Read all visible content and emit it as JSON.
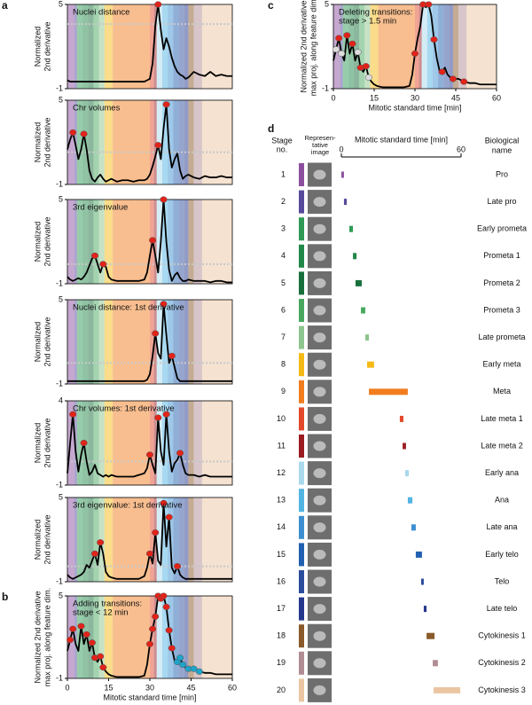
{
  "stage_bands": {
    "colors": [
      "#8c4f9f",
      "#574a9c",
      "#2f9a55",
      "#21884a",
      "#17703c",
      "#48a85f",
      "#8dc58e",
      "#f5b916",
      "#f27d1f",
      "#e3492a",
      "#9b1c20",
      "#a9d9ec",
      "#52b4e3",
      "#3d8fd1",
      "#2060b0",
      "#2b4c9d",
      "#25378d",
      "#8a5a2a",
      "#b08c93",
      "#ebc6a2"
    ],
    "start": [
      0,
      2.5,
      3.5,
      5.5,
      7.5,
      9.5,
      11.5,
      13.5,
      16.5,
      30,
      31.5,
      32.5,
      34.5,
      36.5,
      38.5,
      40.5,
      42.5,
      44,
      46,
      49
    ],
    "end": [
      2.5,
      3.5,
      5.5,
      7.5,
      9.5,
      11.5,
      13.5,
      16.5,
      30,
      31.5,
      32.5,
      34.5,
      36.5,
      38.5,
      40.5,
      42.5,
      44,
      46,
      49,
      60
    ]
  },
  "chart_data": [
    {
      "type": "line",
      "panel": "a",
      "title": [
        "Nuclei distance"
      ],
      "ylabel": [
        "Normalized",
        "2nd derivative"
      ],
      "xlim": [
        0,
        60
      ],
      "ylim": [
        -1,
        5
      ],
      "yticks": [
        -1,
        5
      ],
      "threshold": 3.6,
      "color": "#000000",
      "x": [
        0,
        1,
        2,
        3,
        4,
        5,
        6,
        7,
        8,
        9,
        10,
        11,
        12,
        13,
        14,
        15,
        16,
        18,
        20,
        22,
        24,
        26,
        28,
        29,
        30,
        31,
        32,
        33,
        34,
        35,
        36,
        37,
        38,
        39,
        40,
        41,
        42,
        43,
        44,
        46,
        48,
        50,
        52,
        54,
        56,
        58,
        60
      ],
      "values": [
        -0.4,
        -0.5,
        -0.5,
        -0.5,
        -0.5,
        -0.5,
        -0.5,
        -0.5,
        -0.5,
        -0.5,
        -0.5,
        -0.5,
        -0.5,
        -0.5,
        -0.5,
        -0.5,
        -0.5,
        -0.5,
        -0.5,
        -0.5,
        -0.5,
        -0.5,
        -0.5,
        -0.4,
        -0.3,
        0.8,
        3.5,
        5.0,
        3.2,
        1.8,
        2.6,
        2.0,
        1.2,
        0.6,
        0.2,
        0.0,
        -0.1,
        -0.3,
        -0.2,
        0.2,
        0.0,
        -0.1,
        0.2,
        -0.1,
        0.0,
        -0.1,
        -0.1
      ],
      "markers": [
        {
          "color": "#e2231a",
          "x": [
            33
          ],
          "y": [
            5.0
          ]
        }
      ]
    },
    {
      "type": "line",
      "title": [
        "Chr volumes"
      ],
      "ylabel": [
        "Normalized",
        "2nd derivative"
      ],
      "xlim": [
        0,
        60
      ],
      "ylim": [
        -1,
        5
      ],
      "yticks": [
        -1,
        5
      ],
      "threshold": 1.3,
      "color": "#000000",
      "x": [
        0,
        1,
        2,
        3,
        4,
        5,
        6,
        7,
        8,
        9,
        10,
        11,
        12,
        13,
        14,
        15,
        16,
        18,
        20,
        22,
        24,
        26,
        28,
        29,
        30,
        31,
        32,
        33,
        34,
        35,
        36,
        37,
        38,
        39,
        40,
        41,
        42,
        43,
        44,
        46,
        48,
        50,
        52,
        54,
        56,
        58,
        60
      ],
      "values": [
        1.5,
        2.2,
        2.7,
        1.8,
        0.8,
        1.5,
        2.6,
        1.5,
        0.0,
        -0.6,
        -0.8,
        -0.5,
        -0.3,
        -0.6,
        -0.8,
        -0.7,
        -0.6,
        -0.8,
        -0.7,
        -0.7,
        -0.8,
        -0.7,
        -0.7,
        -0.6,
        -0.3,
        0.3,
        1.0,
        1.8,
        0.8,
        3.0,
        4.7,
        1.5,
        0.2,
        0.8,
        1.2,
        0.0,
        -0.6,
        -0.4,
        -0.3,
        -0.5,
        -0.6,
        -0.4,
        -0.5,
        -0.5,
        -0.4,
        -0.5,
        -0.5
      ],
      "markers": [
        {
          "color": "#e2231a",
          "x": [
            2,
            6,
            33,
            36
          ],
          "y": [
            2.7,
            2.6,
            1.8,
            4.7
          ]
        }
      ]
    },
    {
      "type": "line",
      "title": [
        "3rd eigenvalue"
      ],
      "ylabel": [
        "Normalized",
        "2nd derivative"
      ],
      "xlim": [
        0,
        60
      ],
      "ylim": [
        -1,
        5
      ],
      "yticks": [
        -1,
        5
      ],
      "threshold": 0.4,
      "color": "#000000",
      "x": [
        0,
        1,
        2,
        3,
        4,
        5,
        6,
        7,
        8,
        9,
        10,
        11,
        12,
        13,
        14,
        15,
        16,
        18,
        20,
        22,
        24,
        26,
        28,
        29,
        30,
        31,
        32,
        33,
        34,
        35,
        36,
        37,
        38,
        39,
        40,
        41,
        42,
        43,
        44,
        46,
        48,
        50,
        52,
        54,
        56,
        58,
        60
      ],
      "values": [
        -0.5,
        -0.7,
        -0.8,
        -0.7,
        -0.6,
        -0.7,
        -0.5,
        -0.2,
        0.3,
        0.8,
        1.0,
        0.4,
        -0.2,
        0.4,
        0.2,
        -0.5,
        -0.7,
        -0.8,
        -0.8,
        -0.8,
        -0.8,
        -0.8,
        -0.7,
        -0.2,
        1.0,
        2.1,
        1.0,
        -0.2,
        2.0,
        5.0,
        2.0,
        0.0,
        -0.8,
        -0.4,
        -0.2,
        -0.6,
        -0.8,
        -0.8,
        -0.7,
        -0.8,
        -0.8,
        -0.8,
        -0.9,
        -0.8,
        -0.8,
        -0.9,
        -0.9
      ],
      "markers": [
        {
          "color": "#e2231a",
          "x": [
            10,
            13,
            31,
            35
          ],
          "y": [
            1.0,
            0.4,
            2.1,
            5.0
          ]
        }
      ]
    },
    {
      "type": "line",
      "title": [
        "Nuclei distance: 1st derivative"
      ],
      "ylabel": [
        "Normalized",
        "2nd derivative"
      ],
      "xlim": [
        0,
        60
      ],
      "ylim": [
        -1,
        5
      ],
      "yticks": [
        -1,
        5
      ],
      "threshold": 0.5,
      "color": "#000000",
      "x": [
        0,
        1,
        2,
        3,
        4,
        5,
        6,
        7,
        8,
        9,
        10,
        11,
        12,
        13,
        14,
        15,
        16,
        18,
        20,
        22,
        24,
        26,
        28,
        29,
        30,
        31,
        32,
        33,
        34,
        35,
        36,
        37,
        38,
        39,
        40,
        41,
        42,
        43,
        44,
        46,
        48,
        50,
        52,
        54,
        56,
        58,
        60
      ],
      "values": [
        -0.8,
        -0.8,
        -0.8,
        -0.8,
        -0.8,
        -0.8,
        -0.8,
        -0.8,
        -0.8,
        -0.8,
        -0.8,
        -0.8,
        -0.8,
        -0.8,
        -0.8,
        -0.8,
        -0.8,
        -0.8,
        -0.8,
        -0.8,
        -0.8,
        -0.8,
        -0.8,
        -0.7,
        -0.3,
        1.0,
        2.6,
        1.2,
        0.8,
        4.7,
        2.5,
        0.5,
        1.0,
        0.2,
        -0.6,
        -0.8,
        -0.8,
        -0.8,
        -0.8,
        -0.8,
        -0.8,
        -0.8,
        -0.8,
        -0.8,
        -0.8,
        -0.8,
        -0.8
      ],
      "markers": [
        {
          "color": "#e2231a",
          "x": [
            32,
            35,
            38
          ],
          "y": [
            2.6,
            4.7,
            1.0
          ]
        }
      ]
    },
    {
      "type": "line",
      "title": [
        "Chr volumes: 1st derivative"
      ],
      "ylabel": [
        "Normalized",
        "2nd derivative"
      ],
      "xlim": [
        0,
        60
      ],
      "ylim": [
        -1,
        4
      ],
      "yticks": [
        -1,
        4
      ],
      "threshold": 0.4,
      "color": "#000000",
      "x": [
        0,
        1,
        2,
        3,
        4,
        5,
        6,
        7,
        8,
        9,
        10,
        11,
        12,
        13,
        14,
        15,
        16,
        18,
        20,
        22,
        24,
        26,
        28,
        29,
        30,
        31,
        32,
        33,
        34,
        35,
        36,
        37,
        38,
        39,
        40,
        41,
        42,
        43,
        44,
        46,
        48,
        50,
        52,
        54,
        56,
        58,
        60
      ],
      "values": [
        -0.3,
        1.5,
        3.2,
        1.0,
        -0.2,
        0.8,
        1.5,
        0.4,
        -0.4,
        -0.2,
        0.2,
        -0.3,
        -0.4,
        -0.5,
        -0.4,
        -0.5,
        -0.4,
        -0.5,
        -0.5,
        -0.5,
        -0.5,
        -0.4,
        -0.3,
        0.0,
        0.8,
        0.2,
        -0.3,
        3.0,
        1.0,
        0.2,
        3.2,
        1.0,
        -0.2,
        0.3,
        0.5,
        0.9,
        0.2,
        -0.3,
        -0.4,
        -0.4,
        -0.5,
        -0.4,
        -0.5,
        -0.5,
        -0.5,
        -0.5,
        -0.5
      ],
      "markers": [
        {
          "color": "#e2231a",
          "x": [
            2,
            6,
            30,
            33,
            36,
            41
          ],
          "y": [
            3.2,
            1.5,
            0.8,
            3.0,
            3.2,
            0.9
          ]
        }
      ]
    },
    {
      "type": "line",
      "title": [
        "3rd eigenvalue: 1st derivative"
      ],
      "ylabel": [
        "Normalized",
        "2nd derivative"
      ],
      "xlim": [
        0,
        60
      ],
      "ylim": [
        -1,
        5
      ],
      "yticks": [
        -1,
        5
      ],
      "threshold": 0.1,
      "color": "#000000",
      "x": [
        0,
        1,
        2,
        3,
        4,
        5,
        6,
        7,
        8,
        9,
        10,
        11,
        12,
        13,
        14,
        15,
        16,
        18,
        20,
        22,
        24,
        26,
        28,
        29,
        30,
        31,
        32,
        33,
        34,
        35,
        36,
        37,
        38,
        39,
        40,
        41,
        42,
        43,
        44,
        46,
        48,
        50,
        52,
        54,
        56,
        58,
        60
      ],
      "values": [
        -0.5,
        -0.7,
        -0.8,
        -0.7,
        -0.6,
        -0.5,
        -0.3,
        0.2,
        0.0,
        0.5,
        1.0,
        0.2,
        1.8,
        1.0,
        -0.3,
        -0.6,
        -0.7,
        -0.8,
        -0.8,
        -0.8,
        -0.8,
        -0.8,
        -0.6,
        0.0,
        1.0,
        0.3,
        2.5,
        0.5,
        0.2,
        4.6,
        1.5,
        3.6,
        0.0,
        -0.4,
        0.1,
        -0.5,
        -0.7,
        -0.8,
        -0.8,
        -0.8,
        -0.8,
        -0.8,
        -0.8,
        -0.8,
        -0.8,
        -0.8,
        -0.8
      ],
      "markers": [
        {
          "color": "#e2231a",
          "x": [
            10,
            12,
            30,
            32,
            35,
            37,
            40
          ],
          "y": [
            1.0,
            1.8,
            1.0,
            2.5,
            4.6,
            3.6,
            0.1
          ]
        }
      ]
    },
    {
      "type": "line",
      "panel": "b",
      "title": [
        "Adding transitions:",
        "stage < 12 min"
      ],
      "ylabel": [
        "Normalized 2nd derivative",
        "max proj. along feature dim."
      ],
      "xlabel": "Mitotic standard time [min]",
      "xlim": [
        0,
        60
      ],
      "xticks": [
        0,
        15,
        30,
        45,
        60
      ],
      "ylim": [
        -1,
        5
      ],
      "yticks": [
        -1,
        5
      ],
      "color": "#000000",
      "x": [
        0,
        1,
        2,
        3,
        4,
        5,
        6,
        7,
        8,
        9,
        10,
        11,
        12,
        13,
        14,
        15,
        16,
        18,
        20,
        22,
        24,
        26,
        28,
        29,
        30,
        31,
        32,
        33,
        34,
        35,
        36,
        37,
        38,
        39,
        40,
        41,
        42,
        43,
        44,
        46,
        48,
        50,
        52,
        54,
        56,
        58,
        60
      ],
      "values": [
        1.0,
        1.8,
        2.6,
        1.5,
        1.0,
        2.8,
        1.5,
        2.2,
        1.0,
        1.6,
        0.5,
        0.2,
        0.6,
        -0.2,
        -0.5,
        -0.7,
        -0.8,
        -0.9,
        -0.9,
        -0.9,
        -0.9,
        -0.9,
        -0.8,
        0.0,
        1.5,
        2.6,
        3.5,
        5.0,
        4.8,
        5.0,
        4.2,
        2.5,
        1.2,
        0.3,
        0.2,
        0.5,
        0.0,
        -0.2,
        -0.3,
        -0.3,
        -0.5,
        -0.6,
        -0.6,
        -0.7,
        -0.7,
        -0.7,
        -0.7
      ],
      "markers": [
        {
          "color": "#e2231a",
          "x": [
            1,
            2,
            5,
            7,
            9,
            10,
            12,
            13,
            30,
            31,
            32,
            33,
            34,
            35,
            36,
            37,
            38
          ],
          "y": [
            1.8,
            2.6,
            2.8,
            2.2,
            1.6,
            0.5,
            0.6,
            -0.2,
            1.5,
            2.6,
            3.5,
            5.0,
            4.8,
            5.0,
            4.2,
            2.5,
            1.2
          ]
        },
        {
          "color": "#1fa3c9",
          "x": [
            40,
            41,
            42,
            44,
            46,
            48
          ],
          "y": [
            0.2,
            0.5,
            0.0,
            -0.3,
            -0.3,
            -0.5
          ]
        }
      ]
    },
    {
      "type": "line",
      "panel": "c",
      "title": [
        "Deleting transitions:",
        "stage > 1.5 min"
      ],
      "ylabel": [
        "Normalized 2nd derivative",
        "max proj. along feature dim."
      ],
      "xlabel": "Mitotic standard time [min]",
      "xlim": [
        0,
        60
      ],
      "xticks": [
        0,
        15,
        30,
        45,
        60
      ],
      "ylim": [
        -1,
        5
      ],
      "yticks": [
        -1,
        5
      ],
      "color": "#000000",
      "x": [
        0,
        1,
        2,
        3,
        4,
        5,
        6,
        7,
        8,
        9,
        10,
        11,
        12,
        13,
        14,
        15,
        16,
        18,
        20,
        22,
        24,
        26,
        28,
        29,
        30,
        31,
        32,
        33,
        34,
        35,
        36,
        37,
        38,
        39,
        40,
        41,
        42,
        43,
        44,
        46,
        48,
        50,
        52,
        54,
        56,
        58,
        60
      ],
      "values": [
        1.0,
        1.8,
        2.6,
        1.5,
        1.0,
        2.8,
        1.5,
        2.2,
        1.0,
        1.6,
        0.5,
        0.2,
        0.6,
        -0.2,
        -0.5,
        -0.7,
        -0.8,
        -0.9,
        -0.9,
        -0.9,
        -0.9,
        -0.9,
        -0.8,
        0.0,
        1.5,
        2.6,
        3.5,
        5.0,
        4.8,
        5.0,
        4.2,
        2.5,
        1.2,
        0.3,
        0.2,
        0.5,
        0.0,
        -0.2,
        -0.3,
        -0.3,
        -0.5,
        -0.6,
        -0.6,
        -0.7,
        -0.7,
        -0.7,
        -0.7
      ],
      "markers": [
        {
          "color": "#e2231a",
          "x": [
            2,
            5,
            7,
            10,
            12,
            30,
            33,
            35,
            37,
            40,
            44,
            48
          ],
          "y": [
            2.6,
            2.8,
            2.2,
            0.5,
            0.6,
            1.5,
            5.0,
            5.0,
            2.5,
            0.2,
            -0.3,
            -0.5
          ]
        },
        {
          "color": "#dddddd",
          "x": [
            1,
            3,
            9,
            13
          ],
          "y": [
            1.8,
            1.5,
            1.6,
            -0.2
          ]
        }
      ]
    },
    {
      "type": "range",
      "panel": "d",
      "header": {
        "stage": [
          "Stage",
          "no."
        ],
        "image": [
          "Represen-",
          "tative",
          "image"
        ],
        "time": "Mitotic standard time [min]",
        "name": [
          "Biological",
          "name"
        ]
      },
      "xlim": [
        0,
        60
      ],
      "xticks": [
        0,
        60
      ],
      "stages": [
        1,
        2,
        3,
        4,
        5,
        6,
        7,
        8,
        9,
        10,
        11,
        12,
        13,
        14,
        15,
        16,
        17,
        18,
        19,
        20
      ],
      "names": [
        "Pro",
        "Late pro",
        "Early prometa",
        "Prometa 1",
        "Prometa 2",
        "Prometa 3",
        "Late prometa",
        "Early meta",
        "Meta",
        "Late meta 1",
        "Late meta 2",
        "Early ana",
        "Ana",
        "Late ana",
        "Early telo",
        "Telo",
        "Late telo",
        "Cytokinesis 1",
        "Cytokinesis 2",
        "Cytokinesis 3"
      ],
      "colors": [
        "#8c4f9f",
        "#574a9c",
        "#2f9a55",
        "#21884a",
        "#17703c",
        "#48a85f",
        "#8dc58e",
        "#f5b916",
        "#f27d1f",
        "#e3492a",
        "#9b1c20",
        "#a9d9ec",
        "#52b4e3",
        "#3d8fd1",
        "#2060b0",
        "#2b4c9d",
        "#25378d",
        "#8a5a2a",
        "#b08c93",
        "#ebc6a2"
      ],
      "start": [
        0,
        1.3,
        4.0,
        5.8,
        7.1,
        9.8,
        12.0,
        12.9,
        13.8,
        29.3,
        30.7,
        32.0,
        33.3,
        35.1,
        37.3,
        40.0,
        41.3,
        42.7,
        45.8,
        46.2
      ],
      "end": [
        1.3,
        2.7,
        5.8,
        7.6,
        10.2,
        12.0,
        13.8,
        16.4,
        33.3,
        31.1,
        32.4,
        33.8,
        35.6,
        37.3,
        40.4,
        41.3,
        42.7,
        46.7,
        48.4,
        59.6
      ]
    }
  ]
}
